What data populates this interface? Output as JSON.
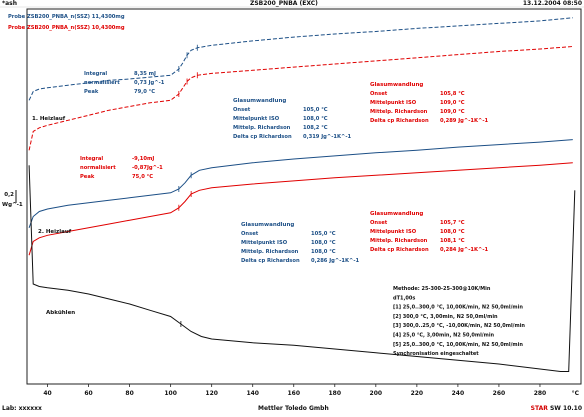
{
  "header": {
    "left": "*ash",
    "center": "ZSB200_PNBA (EXC)",
    "right": "13.12.2004 08:50"
  },
  "footer": {
    "left": "Lab: xxxxxx",
    "center": "Mettler Toledo Gmbh",
    "star": "STAR",
    "right": "SW 10.10"
  },
  "colors": {
    "blue": "#1c4f86",
    "red": "#e00000",
    "black": "#111111",
    "axis": "#222222"
  },
  "chart_data": {
    "type": "line",
    "xlim": [
      30,
      300
    ],
    "xlabel": "°C",
    "x_ticks": [
      40,
      60,
      80,
      100,
      120,
      140,
      160,
      180,
      200,
      220,
      240,
      260,
      280
    ],
    "x_tick_labels": [
      "40",
      "60",
      "80",
      "100",
      "120",
      "140",
      "160",
      "180",
      "200",
      "220",
      "240",
      "260",
      "280"
    ],
    "y_scale_label": "0,2",
    "y_unit": "Wg^-1",
    "legend": [
      {
        "name": "Probe ZSB200_PNBA_n(SSZ) 11,4300mg",
        "color": "#1c4f86"
      },
      {
        "name": "Probe ZSB200_PNBA_n(SSZ) 10,4300mg",
        "color": "#e00000"
      }
    ],
    "series": [
      {
        "name": "Probe ZSB200_PNBA_n(SSZ) 11,4300mg",
        "run": "1. Heizlauf",
        "color": "#1c4f86",
        "style": "dashed",
        "x": [
          31,
          33,
          36,
          40,
          50,
          60,
          70,
          80,
          90,
          100,
          104,
          106,
          108,
          110,
          113,
          120,
          140,
          160,
          180,
          200,
          220,
          240,
          260,
          280,
          296
        ],
        "y": [
          -7.3,
          -6.6,
          -6.4,
          -6.3,
          -6.1,
          -5.9,
          -5.7,
          -5.6,
          -5.45,
          -5.3,
          -4.8,
          -4.3,
          -3.7,
          -3.3,
          -3.1,
          -2.9,
          -2.55,
          -2.25,
          -2.0,
          -1.8,
          -1.55,
          -1.35,
          -1.15,
          -0.95,
          -0.7
        ]
      },
      {
        "name": "Probe ZSB200_PNBA_n(SSZ) 10,4300mg",
        "run": "1. Heizlauf",
        "color": "#e00000",
        "style": "dashed",
        "x": [
          31,
          33,
          36,
          40,
          50,
          60,
          70,
          80,
          90,
          100,
          104,
          106,
          108,
          110,
          113,
          120,
          140,
          160,
          180,
          200,
          220,
          240,
          260,
          280,
          296
        ],
        "y": [
          -11.3,
          -9.8,
          -9.5,
          -9.3,
          -8.9,
          -8.5,
          -8.1,
          -7.8,
          -7.5,
          -7.3,
          -6.8,
          -6.3,
          -5.8,
          -5.5,
          -5.3,
          -5.15,
          -4.9,
          -4.65,
          -4.4,
          -4.15,
          -3.9,
          -3.65,
          -3.4,
          -3.2,
          -3.0
        ]
      },
      {
        "name": "Probe ZSB200_PNBA_n(SSZ) 11,4300mg",
        "run": "2. Heizlauf",
        "color": "#1c4f86",
        "style": "solid",
        "x": [
          31,
          33,
          36,
          40,
          50,
          60,
          70,
          80,
          90,
          100,
          104,
          107,
          110,
          114,
          120,
          140,
          160,
          180,
          200,
          220,
          240,
          260,
          280,
          296
        ],
        "y": [
          -17.5,
          -16.6,
          -16.2,
          -16.0,
          -15.7,
          -15.5,
          -15.3,
          -15.1,
          -14.9,
          -14.7,
          -14.4,
          -13.9,
          -13.3,
          -12.9,
          -12.7,
          -12.3,
          -12.0,
          -11.75,
          -11.5,
          -11.3,
          -11.05,
          -10.85,
          -10.65,
          -10.45
        ]
      },
      {
        "name": "Probe ZSB200_PNBA_n(SSZ) 10,4300mg",
        "run": "2. Heizlauf",
        "color": "#e00000",
        "style": "solid",
        "x": [
          31,
          33,
          36,
          40,
          50,
          60,
          70,
          80,
          90,
          100,
          104,
          107,
          110,
          114,
          120,
          140,
          160,
          180,
          200,
          220,
          240,
          260,
          280,
          296
        ],
        "y": [
          -19.7,
          -18.6,
          -18.3,
          -18.1,
          -17.8,
          -17.5,
          -17.2,
          -16.9,
          -16.6,
          -16.3,
          -15.9,
          -15.4,
          -14.8,
          -14.5,
          -14.3,
          -14.0,
          -13.75,
          -13.5,
          -13.3,
          -13.1,
          -12.9,
          -12.7,
          -12.5,
          -12.3
        ]
      },
      {
        "name": "Abkühlen",
        "run": "Abkühlen",
        "color": "#111111",
        "style": "solid",
        "x": [
          31,
          33,
          36,
          40,
          50,
          60,
          70,
          80,
          90,
          100,
          105,
          110,
          115,
          120,
          140,
          160,
          180,
          200,
          220,
          240,
          260,
          280,
          290,
          294,
          297
        ],
        "y": [
          -12.5,
          -22.0,
          -22.2,
          -22.3,
          -22.5,
          -22.8,
          -23.2,
          -23.6,
          -24.1,
          -24.6,
          -25.2,
          -25.8,
          -26.2,
          -26.4,
          -26.7,
          -26.9,
          -27.2,
          -27.5,
          -27.8,
          -28.1,
          -28.4,
          -28.8,
          -29.0,
          -29.0,
          -14.5
        ]
      }
    ],
    "ylim": [
      -30,
      0
    ]
  },
  "annotations": {
    "run_labels": [
      {
        "text": "1. Heizlauf",
        "color": "#111111"
      },
      {
        "text": "2. Heizlauf",
        "color": "#111111"
      },
      {
        "text": "Abkühlen",
        "color": "#111111"
      }
    ],
    "integral_blue": {
      "color": "#1c4f86",
      "rows": [
        [
          "Integral",
          "8,35 mJ"
        ],
        [
          "normalisiert",
          "0,73 Jg^-1"
        ],
        [
          "Peak",
          "79,0 °C"
        ]
      ]
    },
    "integral_red": {
      "color": "#e00000",
      "rows": [
        [
          "Integral",
          "-9,10mJ"
        ],
        [
          "normalisiert",
          "-0,87Jg^-1"
        ],
        [
          "Peak",
          "75,0 °C"
        ]
      ]
    },
    "glass_blue_1": {
      "color": "#1c4f86",
      "title": "Glasumwandlung",
      "rows": [
        [
          "Onset",
          "105,0 °C"
        ],
        [
          "Mittelpunkt ISO",
          "108,0 °C"
        ],
        [
          "Mittelp. Richardson",
          "108,2 °C"
        ],
        [
          "Delta cp Richardson",
          "0,319 Jg^-1K^-1"
        ]
      ]
    },
    "glass_red_1": {
      "color": "#e00000",
      "title": "Glasumwandlung",
      "rows": [
        [
          "Onset",
          "105,8 °C"
        ],
        [
          "Mittelpunkt ISO",
          "109,0 °C"
        ],
        [
          "Mittelp. Richardson",
          "109,0 °C"
        ],
        [
          "Delta cp Richardson",
          "0,289 Jg^-1K^-1"
        ]
      ]
    },
    "glass_blue_2": {
      "color": "#1c4f86",
      "title": "Glasumwandlung",
      "rows": [
        [
          "Onset",
          "105,0 °C"
        ],
        [
          "Mittelpunkt ISO",
          "108,0 °C"
        ],
        [
          "Mittelp. Richardson",
          "108,0 °C"
        ],
        [
          "Delta cp Richardson",
          "0,286 Jg^-1K^-1"
        ]
      ]
    },
    "glass_red_2": {
      "color": "#e00000",
      "title": "Glasumwandlung",
      "rows": [
        [
          "Onset",
          "105,7 °C"
        ],
        [
          "Mittelpunkt ISO",
          "108,0 °C"
        ],
        [
          "Mittelp. Richardson",
          "108,1 °C"
        ],
        [
          "Delta cp Richardson",
          "0,284 Jg^-1K^-1"
        ]
      ]
    },
    "method": {
      "color": "#111111",
      "lines": [
        "Methode: 25-300-25-300@10K/Min",
        "dT1,00s",
        "[1] 25,0..300,0 °C, 10,00K/min, N2 50,0ml/min",
        "[2] 300,0 °C, 3,00min, N2 50,0ml/min",
        "[3] 300,0..25,0 °C, -10,00K/min, N2 50,0ml/min",
        "[4] 25,0 °C, 3,00min, N2 50,0ml/min",
        "[5] 25,0..300,0 °C, 10,00K/min, N2 50,0ml/min",
        "Synchronisation eingeschaltet"
      ]
    }
  }
}
